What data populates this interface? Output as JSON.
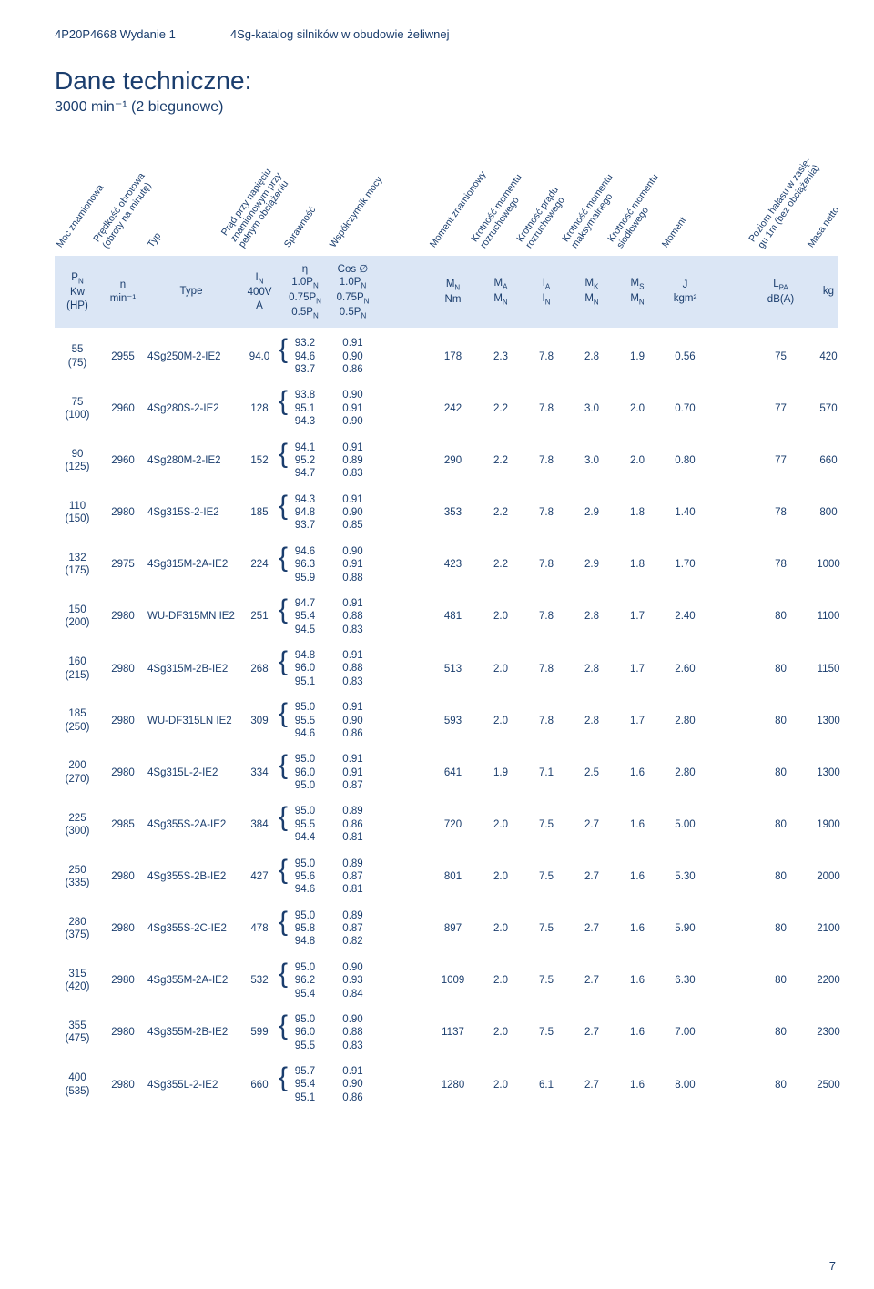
{
  "colors": {
    "text": "#1a3d6d",
    "band_bg": "#dbe6f5",
    "page_bg": "#ffffff"
  },
  "top": {
    "left": "4P20P4668 Wydanie 1",
    "right": "4Sg-katalog silników w obudowie żeliwnej"
  },
  "title": {
    "main": "Dane techniczne:",
    "sub": "3000 min⁻¹ (2 biegunowe)"
  },
  "rotated_labels": [
    "Moc znamionowa",
    "Prędkość obrotowa\n(obroty na minutę)",
    "Typ",
    "Prąd przy napięciu\nznamionowym przy\npełnym obciążeniu",
    "Sprawność",
    "Współczynnik mocy",
    "Moment znamionowy",
    "Krotność momentu\nrozruchowego",
    "Krotność prądu\nrozruchowego",
    "Krotność momentu\nmaksymalnego",
    "Krotność momentu\nsiodłowego",
    "Moment",
    "Poziom hałasu w zasię-\ngu 1m (bez obciążenia)",
    "Masa netto"
  ],
  "header": {
    "c0": "P<sub>N</sub><br>Kw<br>(HP)",
    "c1": "n<br>min⁻¹",
    "c2": "Type",
    "c3": "I<sub>N</sub><br>400V<br>A",
    "c4": "η<br>1.0P<sub>N</sub><br>0.75P<sub>N</sub><br>0.5P<sub>N</sub>",
    "c5": "Cos ∅<br>1.0P<sub>N</sub><br>0.75P<sub>N</sub><br>0.5P<sub>N</sub>",
    "c6": "M<sub>N</sub><br>Nm",
    "c7": "M<sub>A</sub><br>M<sub>N</sub>",
    "c8": "I<sub>A</sub><br>I<sub>N</sub>",
    "c9": "M<sub>K</sub><br>M<sub>N</sub>",
    "c10": "M<sub>S</sub><br>M<sub>N</sub>",
    "c11": "J<br>kgm²",
    "c12": "L<sub>PA</sub><br>dB(A)",
    "c13": "kg"
  },
  "rows": [
    {
      "pn": "55\n(75)",
      "n": "2955",
      "type": "4Sg250M-2-IE2",
      "in": "94.0",
      "eta": "93.2\n94.6\n93.7",
      "cos": "0.91\n0.90\n0.86",
      "mn": "178",
      "ma": "2.3",
      "ia": "7.8",
      "mk": "2.8",
      "ms": "1.9",
      "j": "0.56",
      "lpa": "75",
      "kg": "420"
    },
    {
      "pn": "75\n(100)",
      "n": "2960",
      "type": "4Sg280S-2-IE2",
      "in": "128",
      "eta": "93.8\n95.1\n94.3",
      "cos": "0.90\n0.91\n0.90",
      "mn": "242",
      "ma": "2.2",
      "ia": "7.8",
      "mk": "3.0",
      "ms": "2.0",
      "j": "0.70",
      "lpa": "77",
      "kg": "570"
    },
    {
      "pn": "90\n(125)",
      "n": "2960",
      "type": "4Sg280M-2-IE2",
      "in": "152",
      "eta": "94.1\n95.2\n94.7",
      "cos": "0.91\n0.89\n0.83",
      "mn": "290",
      "ma": "2.2",
      "ia": "7.8",
      "mk": "3.0",
      "ms": "2.0",
      "j": "0.80",
      "lpa": "77",
      "kg": "660"
    },
    {
      "pn": "110\n(150)",
      "n": "2980",
      "type": "4Sg315S-2-IE2",
      "in": "185",
      "eta": "94.3\n94.8\n93.7",
      "cos": "0.91\n0.90\n0.85",
      "mn": "353",
      "ma": "2.2",
      "ia": "7.8",
      "mk": "2.9",
      "ms": "1.8",
      "j": "1.40",
      "lpa": "78",
      "kg": "800"
    },
    {
      "pn": "132\n(175)",
      "n": "2975",
      "type": "4Sg315M-2A-IE2",
      "in": "224",
      "eta": "94.6\n96.3\n95.9",
      "cos": "0.90\n0.91\n0.88",
      "mn": "423",
      "ma": "2.2",
      "ia": "7.8",
      "mk": "2.9",
      "ms": "1.8",
      "j": "1.70",
      "lpa": "78",
      "kg": "1000"
    },
    {
      "pn": "150\n(200)",
      "n": "2980",
      "type": "WU-DF315MN IE2",
      "in": "251",
      "eta": "94.7\n95.4\n94.5",
      "cos": "0.91\n0.88\n0.83",
      "mn": "481",
      "ma": "2.0",
      "ia": "7.8",
      "mk": "2.8",
      "ms": "1.7",
      "j": "2.40",
      "lpa": "80",
      "kg": "1100"
    },
    {
      "pn": "160\n(215)",
      "n": "2980",
      "type": "4Sg315M-2B-IE2",
      "in": "268",
      "eta": "94.8\n96.0\n95.1",
      "cos": "0.91\n0.88\n0.83",
      "mn": "513",
      "ma": "2.0",
      "ia": "7.8",
      "mk": "2.8",
      "ms": "1.7",
      "j": "2.60",
      "lpa": "80",
      "kg": "1150"
    },
    {
      "pn": "185\n(250)",
      "n": "2980",
      "type": "WU-DF315LN IE2",
      "in": "309",
      "eta": "95.0\n95.5\n94.6",
      "cos": "0.91\n0.90\n0.86",
      "mn": "593",
      "ma": "2.0",
      "ia": "7.8",
      "mk": "2.8",
      "ms": "1.7",
      "j": "2.80",
      "lpa": "80",
      "kg": "1300"
    },
    {
      "pn": "200\n(270)",
      "n": "2980",
      "type": "4Sg315L-2-IE2",
      "in": "334",
      "eta": "95.0\n96.0\n95.0",
      "cos": "0.91\n0.91\n0.87",
      "mn": "641",
      "ma": "1.9",
      "ia": "7.1",
      "mk": "2.5",
      "ms": "1.6",
      "j": "2.80",
      "lpa": "80",
      "kg": "1300"
    },
    {
      "pn": "225\n(300)",
      "n": "2985",
      "type": "4Sg355S-2A-IE2",
      "in": "384",
      "eta": "95.0\n95.5\n94.4",
      "cos": "0.89\n0.86\n0.81",
      "mn": "720",
      "ma": "2.0",
      "ia": "7.5",
      "mk": "2.7",
      "ms": "1.6",
      "j": "5.00",
      "lpa": "80",
      "kg": "1900"
    },
    {
      "pn": "250\n(335)",
      "n": "2980",
      "type": "4Sg355S-2B-IE2",
      "in": "427",
      "eta": "95.0\n95.6\n94.6",
      "cos": "0.89\n0.87\n0.81",
      "mn": "801",
      "ma": "2.0",
      "ia": "7.5",
      "mk": "2.7",
      "ms": "1.6",
      "j": "5.30",
      "lpa": "80",
      "kg": "2000"
    },
    {
      "pn": "280\n(375)",
      "n": "2980",
      "type": "4Sg355S-2C-IE2",
      "in": "478",
      "eta": "95.0\n95.8\n94.8",
      "cos": "0.89\n0.87\n0.82",
      "mn": "897",
      "ma": "2.0",
      "ia": "7.5",
      "mk": "2.7",
      "ms": "1.6",
      "j": "5.90",
      "lpa": "80",
      "kg": "2100"
    },
    {
      "pn": "315\n(420)",
      "n": "2980",
      "type": "4Sg355M-2A-IE2",
      "in": "532",
      "eta": "95.0\n96.2\n95.4",
      "cos": "0.90\n0.93\n0.84",
      "mn": "1009",
      "ma": "2.0",
      "ia": "7.5",
      "mk": "2.7",
      "ms": "1.6",
      "j": "6.30",
      "lpa": "80",
      "kg": "2200"
    },
    {
      "pn": "355\n(475)",
      "n": "2980",
      "type": "4Sg355M-2B-IE2",
      "in": "599",
      "eta": "95.0\n96.0\n95.5",
      "cos": "0.90\n0.88\n0.83",
      "mn": "1137",
      "ma": "2.0",
      "ia": "7.5",
      "mk": "2.7",
      "ms": "1.6",
      "j": "7.00",
      "lpa": "80",
      "kg": "2300"
    },
    {
      "pn": "400\n(535)",
      "n": "2980",
      "type": "4Sg355L-2-IE2",
      "in": "660",
      "eta": "95.7\n95.4\n95.1",
      "cos": "0.91\n0.90\n0.86",
      "mn": "1280",
      "ma": "2.0",
      "ia": "6.1",
      "mk": "2.7",
      "ms": "1.6",
      "j": "8.00",
      "lpa": "80",
      "kg": "2500"
    }
  ],
  "page_number": "7"
}
